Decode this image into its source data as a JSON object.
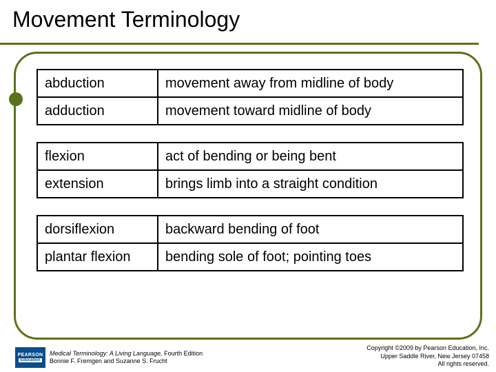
{
  "slide": {
    "title": "Movement Terminology",
    "groups": [
      [
        {
          "term": "abduction",
          "def": "movement away from midline of body"
        },
        {
          "term": "adduction",
          "def": "movement toward midline of body"
        }
      ],
      [
        {
          "term": "flexion",
          "def": "act of bending or being bent"
        },
        {
          "term": "extension",
          "def": "brings limb into a straight condition"
        }
      ],
      [
        {
          "term": "dorsiflexion",
          "def": "backward bending of foot"
        },
        {
          "term": "plantar flexion",
          "def": "bending sole of foot; pointing toes"
        }
      ]
    ]
  },
  "footer": {
    "logo_top": "PEARSON",
    "logo_bottom": "Education",
    "book_title": "Medical Terminology: A Living Language,",
    "book_edition": " Fourth Edition",
    "authors": "Bonnie F. Fremgen and Suzanne S. Frucht",
    "copyright_line1": "Copyright ©2009 by Pearson Education, Inc.",
    "copyright_line2": "Upper Saddle River, New Jersey 07458",
    "copyright_line3": "All rights reserved."
  },
  "styling": {
    "accent_color": "#5b7218",
    "logo_bg": "#0a4d8c",
    "table_border": "#000000",
    "text_color": "#000000",
    "title_fontsize": 32,
    "cell_fontsize": 20,
    "footer_fontsize": 9,
    "slide_width": 720,
    "slide_height": 540,
    "term_col_width": 175
  }
}
